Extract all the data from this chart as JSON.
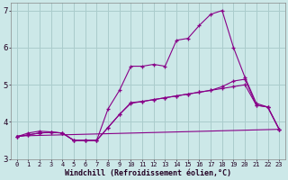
{
  "xlabel": "Windchill (Refroidissement éolien,°C)",
  "bg_color": "#cce8e8",
  "grid_color": "#aacccc",
  "line_color": "#880088",
  "xlim": [
    -0.5,
    23.5
  ],
  "ylim": [
    3.0,
    7.2
  ],
  "yticks": [
    3,
    4,
    5,
    6,
    7
  ],
  "xticks": [
    0,
    1,
    2,
    3,
    4,
    5,
    6,
    7,
    8,
    9,
    10,
    11,
    12,
    13,
    14,
    15,
    16,
    17,
    18,
    19,
    20,
    21,
    22,
    23
  ],
  "series1_x": [
    0,
    1,
    2,
    3,
    4,
    5,
    6,
    7,
    8,
    9,
    10,
    11,
    12,
    13,
    14,
    15,
    16,
    17,
    18,
    19,
    20,
    21,
    22,
    23
  ],
  "series1_y": [
    3.6,
    3.7,
    3.75,
    3.73,
    3.7,
    3.5,
    3.5,
    3.5,
    4.35,
    4.85,
    5.5,
    5.5,
    5.55,
    5.5,
    6.2,
    6.25,
    6.6,
    6.9,
    7.0,
    6.0,
    5.2,
    4.5,
    4.4,
    3.8
  ],
  "series2_x": [
    0,
    1,
    2,
    3,
    4,
    5,
    6,
    7,
    8,
    9,
    10,
    11,
    12,
    13,
    14,
    15,
    16,
    17,
    18,
    19,
    20,
    21,
    22,
    23
  ],
  "series2_y": [
    3.6,
    3.65,
    3.7,
    3.72,
    3.7,
    3.5,
    3.5,
    3.5,
    3.85,
    4.2,
    4.5,
    4.55,
    4.6,
    4.65,
    4.7,
    4.75,
    4.8,
    4.85,
    4.9,
    4.95,
    5.0,
    4.45,
    4.4,
    3.8
  ],
  "series3_x": [
    0,
    23
  ],
  "series3_y": [
    3.62,
    3.8
  ],
  "series4_x": [
    0,
    1,
    2,
    3,
    4,
    5,
    6,
    7,
    8,
    9,
    10,
    11,
    12,
    13,
    14,
    15,
    16,
    17,
    18,
    19,
    20,
    21,
    22,
    23
  ],
  "series4_y": [
    3.6,
    3.65,
    3.7,
    3.72,
    3.7,
    3.5,
    3.5,
    3.5,
    3.85,
    4.2,
    4.52,
    4.55,
    4.6,
    4.65,
    4.7,
    4.75,
    4.8,
    4.85,
    4.95,
    5.1,
    5.15,
    4.45,
    4.4,
    3.8
  ]
}
